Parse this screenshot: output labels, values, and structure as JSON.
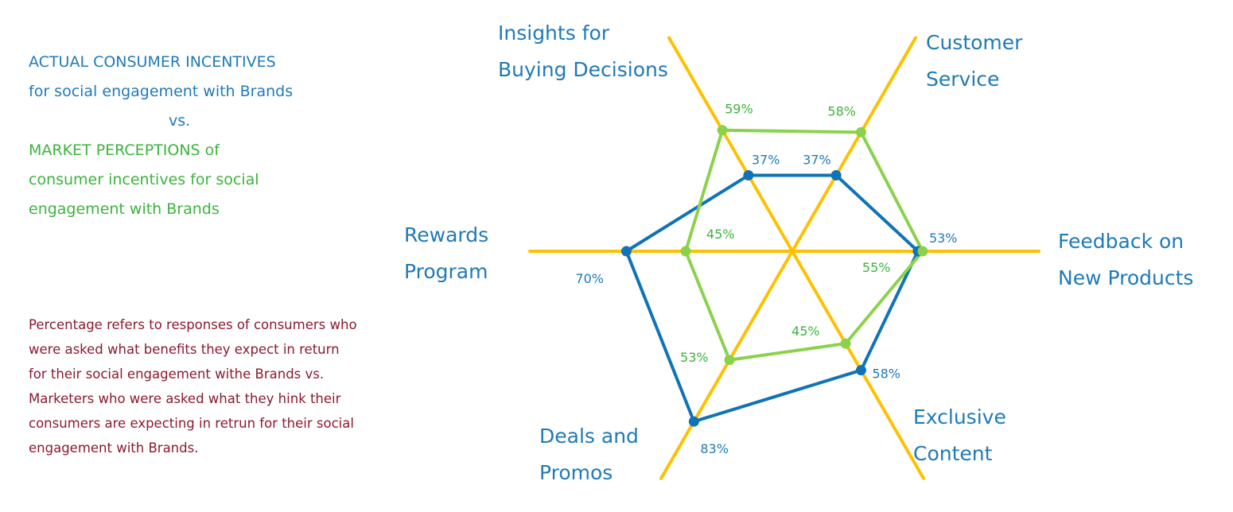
{
  "legend": {
    "actual_line1": "ACTUAL CONSUMER INCENTIVES",
    "actual_line2": "for social engagement with Brands",
    "vs": "vs.",
    "market_line1": "MARKET PERCEPTIONS of",
    "market_line2": "consumer incentives for social",
    "market_line3": "engagement with Brands"
  },
  "note": {
    "line1": "Percentage refers to responses of consumers who",
    "line2": "were asked what benefits they expect in return",
    "line3": "for their social engagement withe Brands vs.",
    "line4": "Marketers who were asked what they hink their",
    "line5": "consumers are expecting in retrun for their social",
    "line6": "engagement with Brands."
  },
  "colors": {
    "axis": "#FFC000",
    "actual": "#0F73B6",
    "market": "#8BD24B",
    "legend_actual_text": "#1F7AB8",
    "legend_market_text": "#3CB43C",
    "note_text": "#8B1A2E"
  },
  "chart_data": {
    "type": "radar",
    "axes": [
      {
        "label_lines": [
          "Insights for",
          "Buying Decisions"
        ]
      },
      {
        "label_lines": [
          "Customer",
          "Service"
        ]
      },
      {
        "label_lines": [
          "Feedback on",
          "New Products"
        ]
      },
      {
        "label_lines": [
          "Exclusive",
          "Content"
        ]
      },
      {
        "label_lines": [
          "Deals and",
          "Promos"
        ]
      },
      {
        "label_lines": [
          "Rewards",
          "Program"
        ]
      }
    ],
    "series": [
      {
        "key": "actual",
        "values": [
          37,
          37,
          53,
          58,
          83,
          70
        ],
        "labels": [
          "37%",
          "37%",
          "53%",
          "58%",
          "83%",
          "70%"
        ]
      },
      {
        "key": "market",
        "values": [
          59,
          58,
          55,
          45,
          53,
          45
        ],
        "labels": [
          "59%",
          "58%",
          "55%",
          "45%",
          "53%",
          "45%"
        ]
      }
    ]
  }
}
